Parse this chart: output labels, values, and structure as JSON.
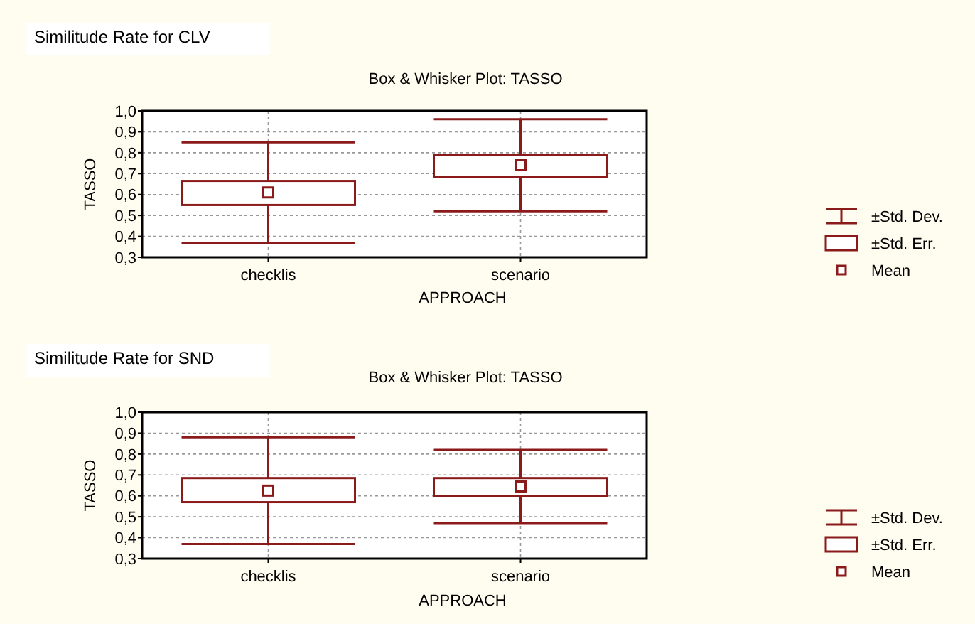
{
  "chart_data": [
    {
      "type": "box",
      "title": "Similitude Rate for CLV",
      "subtitle": "Box & Whisker Plot: TASSO",
      "xlabel": "APPROACH",
      "ylabel": "TASSO",
      "categories": [
        "checklis",
        "scenario"
      ],
      "color": "#8b1a1a",
      "boxes": [
        {
          "low": 0.37,
          "q1": 0.55,
          "q3": 0.665,
          "high": 0.85,
          "mean": 0.61
        },
        {
          "low": 0.52,
          "q1": 0.685,
          "q3": 0.79,
          "high": 0.96,
          "mean": 0.74
        }
      ],
      "ylim": [
        0.3,
        1.0
      ],
      "yticks": [
        {
          "value": 0.3,
          "label": "0,3"
        },
        {
          "value": 0.4,
          "label": "0,4"
        },
        {
          "value": 0.5,
          "label": "0,5"
        },
        {
          "value": 0.6,
          "label": "0,6"
        },
        {
          "value": 0.7,
          "label": "0,7"
        },
        {
          "value": 0.8,
          "label": "0,8"
        },
        {
          "value": 0.9,
          "label": "0,9"
        },
        {
          "value": 1.0,
          "label": "1,0"
        }
      ],
      "grid": true,
      "annotations": [
        "±Std. Dev.",
        "±Std. Err.",
        "Mean"
      ]
    },
    {
      "type": "box",
      "title": "Similitude Rate for SND",
      "subtitle": "Box & Whisker Plot: TASSO",
      "xlabel": "APPROACH",
      "ylabel": "TASSO",
      "categories": [
        "checklis",
        "scenario"
      ],
      "color": "#8b1a1a",
      "boxes": [
        {
          "low": 0.37,
          "q1": 0.57,
          "q3": 0.685,
          "high": 0.88,
          "mean": 0.625
        },
        {
          "low": 0.47,
          "q1": 0.6,
          "q3": 0.685,
          "high": 0.82,
          "mean": 0.645
        }
      ],
      "ylim": [
        0.3,
        1.0
      ],
      "yticks": [
        {
          "value": 0.3,
          "label": "0,3"
        },
        {
          "value": 0.4,
          "label": "0,4"
        },
        {
          "value": 0.5,
          "label": "0,5"
        },
        {
          "value": 0.6,
          "label": "0,6"
        },
        {
          "value": 0.7,
          "label": "0,7"
        },
        {
          "value": 0.8,
          "label": "0,8"
        },
        {
          "value": 0.9,
          "label": "0,9"
        },
        {
          "value": 1.0,
          "label": "1,0"
        }
      ],
      "grid": true,
      "annotations": [
        "±Std. Dev.",
        "±Std. Err.",
        "Mean"
      ]
    }
  ]
}
